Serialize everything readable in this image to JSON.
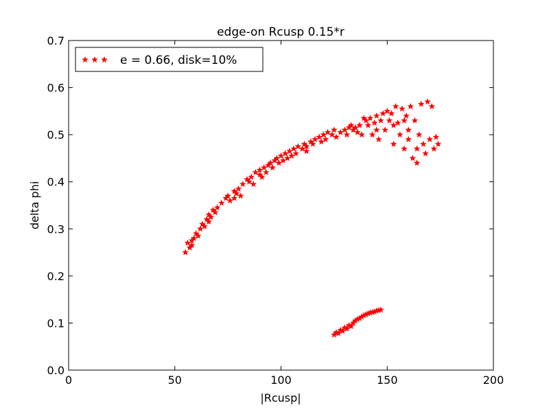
{
  "chart_data": {
    "type": "scatter",
    "title": "edge-on Rcusp 0.15*r",
    "xlabel": "|Rcusp|",
    "ylabel": "delta phi",
    "xlim": [
      0,
      200
    ],
    "ylim": [
      0.0,
      0.7
    ],
    "xticks": [
      "0",
      "50",
      "100",
      "150",
      "200"
    ],
    "yticks": [
      "0.0",
      "0.1",
      "0.2",
      "0.3",
      "0.4",
      "0.5",
      "0.6",
      "0.7"
    ],
    "grid": false,
    "legend_position": "top-left",
    "series": [
      {
        "name": "e = 0.66, disk=10%",
        "color": "#ff0000",
        "marker": "star",
        "points": [
          [
            55,
            0.25
          ],
          [
            56,
            0.27
          ],
          [
            57,
            0.26
          ],
          [
            58,
            0.265
          ],
          [
            59,
            0.28
          ],
          [
            60,
            0.29
          ],
          [
            61,
            0.285
          ],
          [
            62,
            0.3
          ],
          [
            63,
            0.31
          ],
          [
            64,
            0.305
          ],
          [
            65,
            0.32
          ],
          [
            66,
            0.33
          ],
          [
            67,
            0.325
          ],
          [
            68,
            0.34
          ],
          [
            69,
            0.335
          ],
          [
            70,
            0.345
          ],
          [
            72,
            0.355
          ],
          [
            74,
            0.365
          ],
          [
            75,
            0.37
          ],
          [
            76,
            0.36
          ],
          [
            78,
            0.38
          ],
          [
            79,
            0.375
          ],
          [
            80,
            0.385
          ],
          [
            81,
            0.37
          ],
          [
            82,
            0.395
          ],
          [
            84,
            0.405
          ],
          [
            85,
            0.4
          ],
          [
            86,
            0.41
          ],
          [
            87,
            0.395
          ],
          [
            88,
            0.42
          ],
          [
            90,
            0.425
          ],
          [
            91,
            0.41
          ],
          [
            92,
            0.43
          ],
          [
            93,
            0.42
          ],
          [
            94,
            0.435
          ],
          [
            95,
            0.44
          ],
          [
            96,
            0.43
          ],
          [
            97,
            0.445
          ],
          [
            98,
            0.45
          ],
          [
            99,
            0.44
          ],
          [
            100,
            0.455
          ],
          [
            101,
            0.445
          ],
          [
            102,
            0.46
          ],
          [
            103,
            0.45
          ],
          [
            104,
            0.465
          ],
          [
            105,
            0.455
          ],
          [
            106,
            0.47
          ],
          [
            107,
            0.46
          ],
          [
            108,
            0.475
          ],
          [
            110,
            0.47
          ],
          [
            111,
            0.48
          ],
          [
            112,
            0.475
          ],
          [
            114,
            0.485
          ],
          [
            115,
            0.48
          ],
          [
            116,
            0.49
          ],
          [
            118,
            0.495
          ],
          [
            119,
            0.485
          ],
          [
            120,
            0.5
          ],
          [
            121,
            0.49
          ],
          [
            122,
            0.505
          ],
          [
            124,
            0.5
          ],
          [
            125,
            0.51
          ],
          [
            126,
            0.495
          ],
          [
            128,
            0.505
          ],
          [
            130,
            0.51
          ],
          [
            131,
            0.5
          ],
          [
            132,
            0.515
          ],
          [
            133,
            0.52
          ],
          [
            134,
            0.51
          ],
          [
            135,
            0.515
          ],
          [
            136,
            0.505
          ],
          [
            137,
            0.52
          ],
          [
            138,
            0.5
          ],
          [
            140,
            0.53
          ],
          [
            141,
            0.52
          ],
          [
            142,
            0.535
          ],
          [
            143,
            0.5
          ],
          [
            144,
            0.525
          ],
          [
            145,
            0.54
          ],
          [
            146,
            0.49
          ],
          [
            147,
            0.53
          ],
          [
            148,
            0.545
          ],
          [
            149,
            0.51
          ],
          [
            150,
            0.55
          ],
          [
            151,
            0.53
          ],
          [
            152,
            0.545
          ],
          [
            153,
            0.48
          ],
          [
            154,
            0.56
          ],
          [
            155,
            0.525
          ],
          [
            156,
            0.5
          ],
          [
            157,
            0.555
          ],
          [
            158,
            0.47
          ],
          [
            159,
            0.54
          ],
          [
            160,
            0.49
          ],
          [
            161,
            0.56
          ],
          [
            162,
            0.45
          ],
          [
            163,
            0.53
          ],
          [
            164,
            0.44
          ],
          [
            165,
            0.5
          ],
          [
            166,
            0.565
          ],
          [
            167,
            0.48
          ],
          [
            168,
            0.46
          ],
          [
            169,
            0.57
          ],
          [
            170,
            0.49
          ],
          [
            171,
            0.56
          ],
          [
            172,
            0.47
          ],
          [
            173,
            0.495
          ],
          [
            174,
            0.48
          ],
          [
            153,
            0.52
          ],
          [
            160,
            0.51
          ],
          [
            145,
            0.51
          ],
          [
            139,
            0.535
          ],
          [
            158,
            0.53
          ],
          [
            164,
            0.47
          ],
          [
            112,
            0.465
          ],
          [
            90,
            0.415
          ],
          [
            78,
            0.365
          ],
          [
            66,
            0.315
          ],
          [
            58,
            0.275
          ],
          [
            125,
            0.075
          ],
          [
            126,
            0.08
          ],
          [
            127,
            0.078
          ],
          [
            128,
            0.085
          ],
          [
            129,
            0.083
          ],
          [
            130,
            0.09
          ],
          [
            131,
            0.088
          ],
          [
            132,
            0.095
          ],
          [
            133,
            0.093
          ],
          [
            134,
            0.1
          ],
          [
            135,
            0.105
          ],
          [
            136,
            0.108
          ],
          [
            137,
            0.11
          ],
          [
            138,
            0.113
          ],
          [
            139,
            0.116
          ],
          [
            140,
            0.118
          ],
          [
            141,
            0.12
          ],
          [
            142,
            0.122
          ],
          [
            143,
            0.123
          ],
          [
            144,
            0.124
          ],
          [
            145,
            0.126
          ],
          [
            146,
            0.127
          ],
          [
            147,
            0.128
          ]
        ]
      }
    ]
  },
  "style": {
    "series_color": "#ff0000",
    "axis_color": "#000000",
    "background": "#ffffff"
  }
}
